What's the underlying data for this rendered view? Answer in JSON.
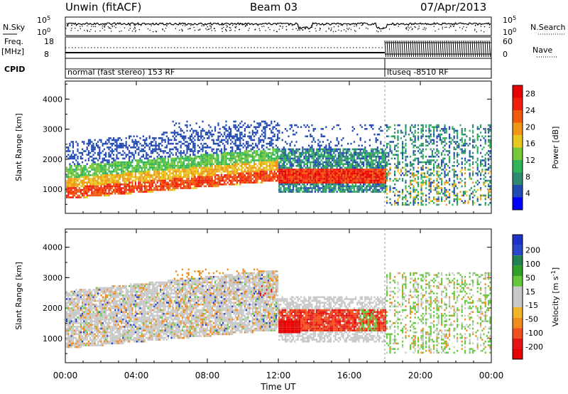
{
  "header": {
    "site": "Unwin (fitACF)",
    "beam": "Beam 03",
    "date": "07/Apr/2013"
  },
  "side_labels": {
    "nsky": "N.Sky",
    "nsearch": "N.Search",
    "freq": "Freq.",
    "freq_unit": "[MHz]",
    "nave": "Nave",
    "cpid": "CPID"
  },
  "noise_panel": {
    "left_ticks": [
      "10^5",
      "10^0"
    ],
    "right_ticks": [
      "10^5",
      "10^0"
    ]
  },
  "freq_panel": {
    "left_ticks": [
      "18",
      "8"
    ],
    "right_ticks": [
      "60",
      "0"
    ]
  },
  "cpid_panel": {
    "programs": [
      {
        "label": "normal (fast stereo) 153 RF",
        "start_hour": 0
      },
      {
        "label": "ltuseq -8510 RF",
        "start_hour": 18
      }
    ]
  },
  "colors": {
    "power": [
      "#0000ff",
      "#234bb4",
      "#2d8a6e",
      "#2fb45a",
      "#78c83c",
      "#e6c81e",
      "#f09614",
      "#f05a0a",
      "#f01e0a",
      "#e60000"
    ],
    "velocity": [
      "#1e32c8",
      "#2846c8",
      "#208250",
      "#30a028",
      "#64c83c",
      "#c8c8c8",
      "#c8c8c8",
      "#f0b428",
      "#f08c1e",
      "#f0501e",
      "#e61414",
      "#e60000"
    ],
    "ground_scatter": "#c8c8c8"
  },
  "chart_data": [
    {
      "type": "heatmap",
      "panel": "power",
      "ylabel": "Slant Range [km]",
      "xlim": [
        0,
        24
      ],
      "ylim": [
        200,
        4600
      ],
      "yticks": [
        "1000",
        "2000",
        "3000",
        "4000"
      ],
      "xticks": [
        "00:00",
        "04:00",
        "08:00",
        "12:00",
        "16:00",
        "20:00",
        "00:00"
      ],
      "colorbar": {
        "label": "Power [dB]",
        "range": [
          0,
          30
        ],
        "ticks": [
          "4",
          "8",
          "12",
          "16",
          "20",
          "24",
          "28"
        ]
      },
      "features": [
        {
          "name": "main scatter band",
          "hours": [
            0,
            12
          ],
          "range_km_start": [
            800,
            1700
          ],
          "range_km_end": [
            1400,
            2400
          ],
          "peak_db": 26
        },
        {
          "name": "intense echo patch",
          "hours": [
            12.3,
            18
          ],
          "range_km": [
            1200,
            1700
          ],
          "peak_db": 30
        },
        {
          "name": "program 2 scatter",
          "hours": [
            18,
            24
          ],
          "range_km": [
            500,
            3200
          ],
          "peak_db": 18
        }
      ]
    },
    {
      "type": "heatmap",
      "panel": "velocity",
      "ylabel": "Slant Range [km]",
      "xlabel": "Time UT",
      "xlim": [
        0,
        24
      ],
      "ylim": [
        200,
        4600
      ],
      "yticks": [
        "1000",
        "2000",
        "3000",
        "4000"
      ],
      "xticks": [
        "00:00",
        "04:00",
        "08:00",
        "12:00",
        "16:00",
        "20:00",
        "00:00"
      ],
      "colorbar": {
        "label": "Velocity [m s^-1]",
        "range": [
          -250,
          250
        ],
        "ticks": [
          "200",
          "100",
          "50",
          "15",
          "-15",
          "-50",
          "-100",
          "-200"
        ]
      },
      "features": [
        {
          "name": "ground scatter",
          "hours": [
            0,
            12
          ],
          "velocity_ms": 0
        },
        {
          "name": "negative velocity patch",
          "hours": [
            12.3,
            18
          ],
          "range_km": [
            1200,
            2000
          ],
          "velocity_ms": -150
        },
        {
          "name": "positive velocity scatter",
          "hours": [
            18,
            24
          ],
          "range_km": [
            500,
            3200
          ],
          "velocity_ms": 40
        }
      ]
    }
  ],
  "axes_labels": {
    "slant_range": "Slant Range [km]",
    "time": "Time UT",
    "power": "Power [dB]",
    "velocity": "Velocity [m s^-1]"
  }
}
